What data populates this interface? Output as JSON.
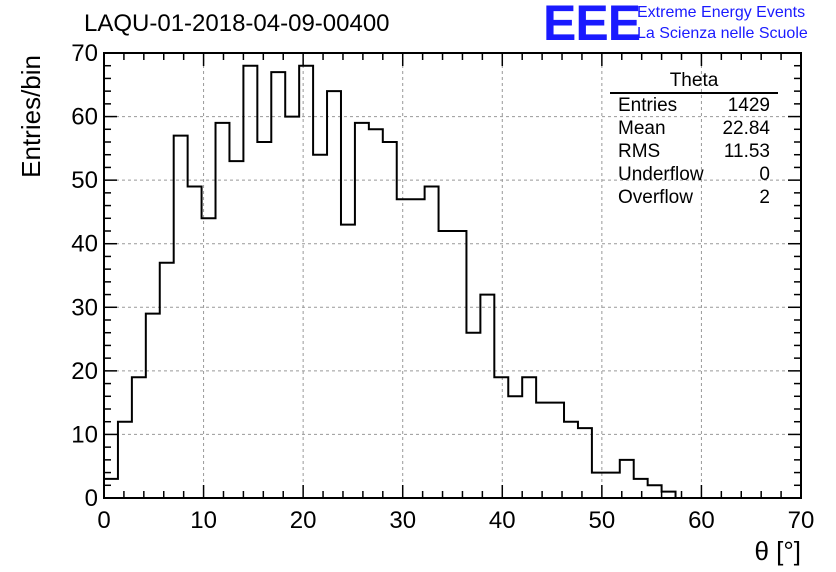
{
  "header": {
    "title": "LAQU-01-2018-04-09-00400",
    "logo_text": "EEE",
    "logo_line1": "Extreme Energy Events",
    "logo_line2": "La Scienza nelle Scuole"
  },
  "stats": {
    "title": "Theta",
    "rows": [
      {
        "label": "Entries",
        "value": "1429"
      },
      {
        "label": "Mean",
        "value": "22.84"
      },
      {
        "label": "RMS",
        "value": "11.53"
      },
      {
        "label": "Underflow",
        "value": "0"
      },
      {
        "label": "Overflow",
        "value": "2"
      }
    ]
  },
  "colors": {
    "line": "#000000",
    "grid": "#999999",
    "logo": "#1a1aff"
  },
  "chart_data": {
    "type": "bar",
    "style": "step-histogram",
    "xlabel": "θ [°]",
    "ylabel": "Entries/bin",
    "xlim": [
      0,
      70
    ],
    "ylim": [
      0,
      70
    ],
    "grid": true,
    "legend": "top-right",
    "bin_edges": [
      0,
      1.4,
      2.8,
      4.2,
      5.6,
      7.0,
      8.4,
      9.8,
      11.2,
      12.6,
      14.0,
      15.4,
      16.8,
      18.2,
      19.6,
      21.0,
      22.4,
      23.8,
      25.2,
      26.6,
      28.0,
      29.4,
      30.8,
      32.2,
      33.6,
      35.0,
      36.4,
      37.8,
      39.2,
      40.6,
      42.0,
      43.4,
      44.8,
      46.2,
      47.6,
      49.0,
      50.4,
      51.8,
      53.2,
      54.6,
      56.0,
      57.4
    ],
    "values": [
      3,
      12,
      19,
      29,
      37,
      57,
      49,
      44,
      59,
      53,
      68,
      56,
      67,
      60,
      68,
      54,
      64,
      43,
      59,
      58,
      56,
      47,
      47,
      49,
      42,
      42,
      26,
      32,
      19,
      16,
      19,
      15,
      15,
      12,
      11,
      4,
      4,
      6,
      3,
      2,
      1
    ],
    "xticks": [
      0,
      10,
      20,
      30,
      40,
      50,
      60,
      70
    ],
    "yticks": [
      0,
      10,
      20,
      30,
      40,
      50,
      60,
      70
    ]
  }
}
